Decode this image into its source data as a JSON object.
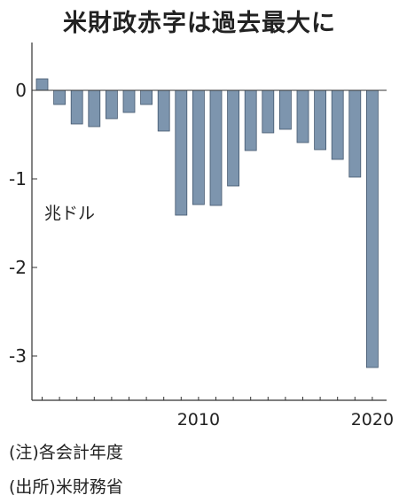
{
  "chart_data": {
    "type": "bar",
    "title": "米財政赤字は過去最大に",
    "unit_label": "兆ドル",
    "x": [
      2001,
      2002,
      2003,
      2004,
      2005,
      2006,
      2007,
      2008,
      2009,
      2010,
      2011,
      2012,
      2013,
      2014,
      2015,
      2016,
      2017,
      2018,
      2019,
      2020
    ],
    "values": [
      0.13,
      -0.16,
      -0.38,
      -0.41,
      -0.32,
      -0.25,
      -0.16,
      -0.46,
      -1.41,
      -1.29,
      -1.3,
      -1.08,
      -0.68,
      -0.48,
      -0.44,
      -0.59,
      -0.67,
      -0.78,
      -0.98,
      -3.13
    ],
    "ylim": [
      -3.5,
      0.5
    ],
    "yticks": [
      0,
      -1,
      -2,
      -3
    ],
    "ytick_labels": [
      "0",
      "-1",
      "-2",
      "-3"
    ],
    "xtick_labels": [
      {
        "year": 2010,
        "label": "2010"
      },
      {
        "year": 2020,
        "label": "2020"
      }
    ],
    "grid": false,
    "colors": {
      "bar": "#7d95ae",
      "bar_edge": "#44586f",
      "axis": "#333333"
    }
  },
  "notes": [
    "(注)各会計年度",
    "(出所)米財務省"
  ]
}
